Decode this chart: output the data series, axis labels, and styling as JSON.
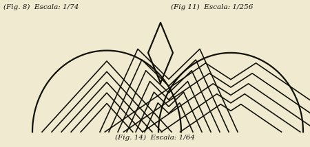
{
  "bg_color": "#f0ead0",
  "line_color": "#111108",
  "line_width": 1.4,
  "text_top_left": "(Fig. 8)  Escala: 1/74",
  "text_top_right": "(Fig 11)  Escala: 1/256",
  "text_bottom": "(Fig. 14)  Escala: 1/64",
  "font_size": 7.5,
  "num_chevrons": 5
}
